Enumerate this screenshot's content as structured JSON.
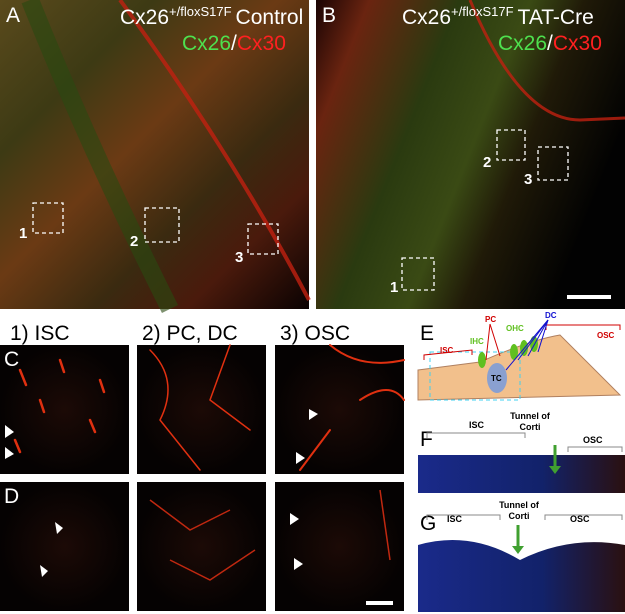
{
  "panels": {
    "A": {
      "label": "A",
      "gene": "Cx26",
      "genotype": "+/floxS17F",
      "condition": "Control",
      "green": "Cx26",
      "separator": "/",
      "red": "Cx30",
      "boxes": [
        "1",
        "2",
        "3"
      ]
    },
    "B": {
      "label": "B",
      "gene": "Cx26",
      "genotype": "+/floxS17F",
      "condition": "TAT-Cre",
      "green": "Cx26",
      "separator": "/",
      "red": "Cx30",
      "boxes": [
        "1",
        "2",
        "3"
      ]
    },
    "columns": [
      "1) ISC",
      "2) PC, DC",
      "3) OSC"
    ],
    "C": {
      "label": "C"
    },
    "D": {
      "label": "D"
    },
    "E": {
      "label": "E",
      "labels": [
        "PC",
        "DC",
        "OHC",
        "IHC",
        "ISC",
        "OSC",
        "TC"
      ]
    },
    "F": {
      "label": "F",
      "regions": [
        "ISC",
        "Tunnel of",
        "Corti",
        "OSC"
      ]
    },
    "G": {
      "label": "G",
      "regions": [
        "ISC",
        "Tunnel of",
        "Corti",
        "OSC"
      ]
    }
  }
}
